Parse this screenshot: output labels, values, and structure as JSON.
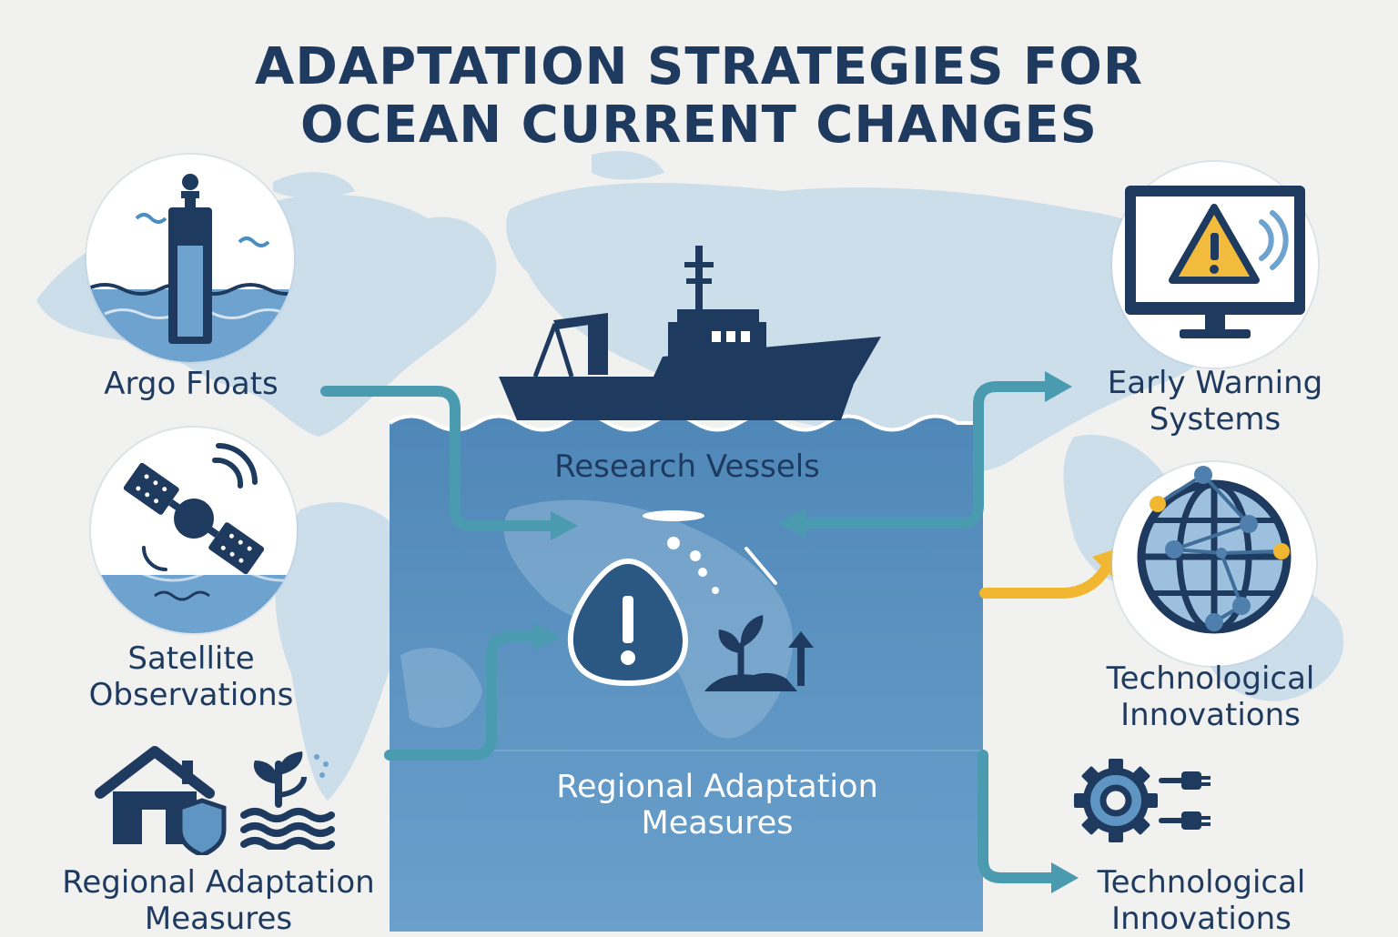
{
  "title": {
    "line1": "ADAPTATION STRATEGIES FOR",
    "line2": "OCEAN CURRENT CHANGES"
  },
  "nodes": {
    "argo_floats": "Argo Floats",
    "satellite_line1": "Satellite",
    "satellite_line2": "Observations",
    "regional_left_line1": "Regional Adaptation",
    "regional_left_line2": "Measures",
    "research_vessels": "Research Vessels",
    "regional_center_line1": "Regional Adaptation",
    "regional_center_line2": "Measures",
    "early_warning_line1": "Early Warning",
    "early_warning_line2": "Systems",
    "tech_upper_line1": "Technological",
    "tech_upper_line2": "Innovations",
    "tech_lower_line1": "Technological",
    "tech_lower_line2": "Innovations"
  },
  "colors": {
    "navy": "#1f3a5f",
    "ocean_panel": "#5f95c2",
    "map_land": "#c6dbea",
    "teal_arrow": "#4a9bb0",
    "yellow_arrow": "#f1b731",
    "warning_yellow": "#f2bb3c"
  },
  "icons": {
    "argo": "argo-float-icon",
    "satellite": "satellite-icon",
    "home": "house-shield-icon",
    "plant": "plant-water-icon",
    "ship": "research-ship-icon",
    "warning": "warning-drop-icon",
    "sprout": "sprout-arrow-icon",
    "monitor": "warning-monitor-icon",
    "globe": "network-globe-icon",
    "gear": "gear-connector-icon"
  }
}
